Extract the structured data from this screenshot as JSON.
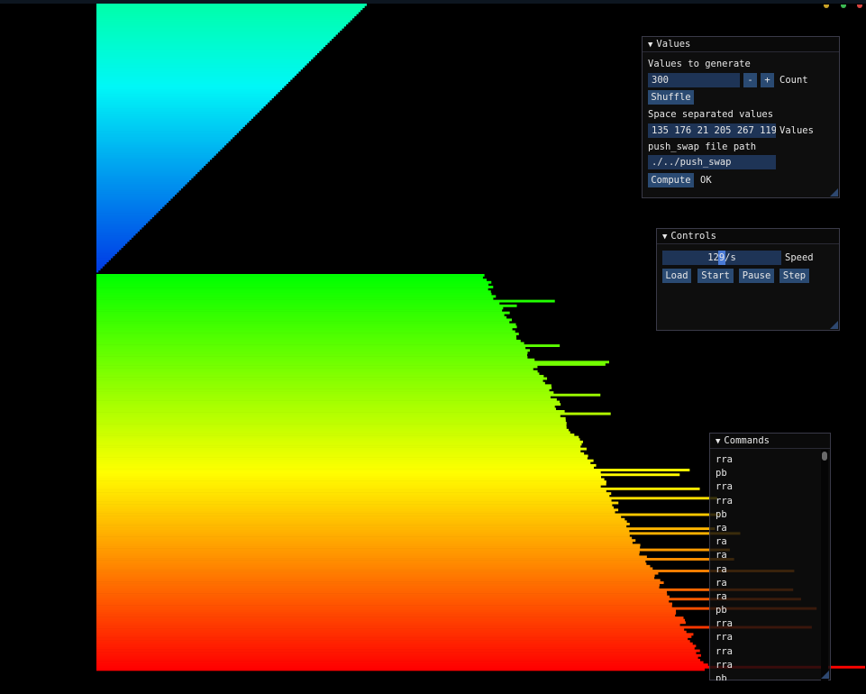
{
  "values_window": {
    "title": "Values",
    "values_to_generate_label": "Values to generate",
    "count_value": "300",
    "minus_label": "-",
    "plus_label": "+",
    "count_label": "Count",
    "shuffle_label": "Shuffle",
    "space_separated_label": "Space separated values",
    "values_field": "135 176 21 205 267 119",
    "values_label": "Values",
    "path_label": "push_swap file path",
    "path_value": "./../push_swap",
    "compute_label": "Compute",
    "status": "OK"
  },
  "controls_window": {
    "title": "Controls",
    "speed_value": "129/s",
    "speed_label": "Speed",
    "speed_fraction": 0.5,
    "load_label": "Load",
    "start_label": "Start",
    "pause_label": "Pause",
    "step_label": "Step"
  },
  "commands_window": {
    "title": "Commands",
    "items": [
      "rra",
      "pb",
      "rra",
      "rra",
      "pb",
      "ra",
      "ra",
      "ra",
      "ra",
      "ra",
      "ra",
      "pb",
      "rra",
      "rra",
      "rra",
      "rra",
      "pb"
    ]
  },
  "visualization": {
    "stack_a_count": 131,
    "stack_b_count": 169,
    "total": 300
  },
  "colors": {
    "background": "#000000",
    "field": "#1e3456",
    "button": "#2a4a72",
    "window_bg": "#0f0f0f"
  }
}
